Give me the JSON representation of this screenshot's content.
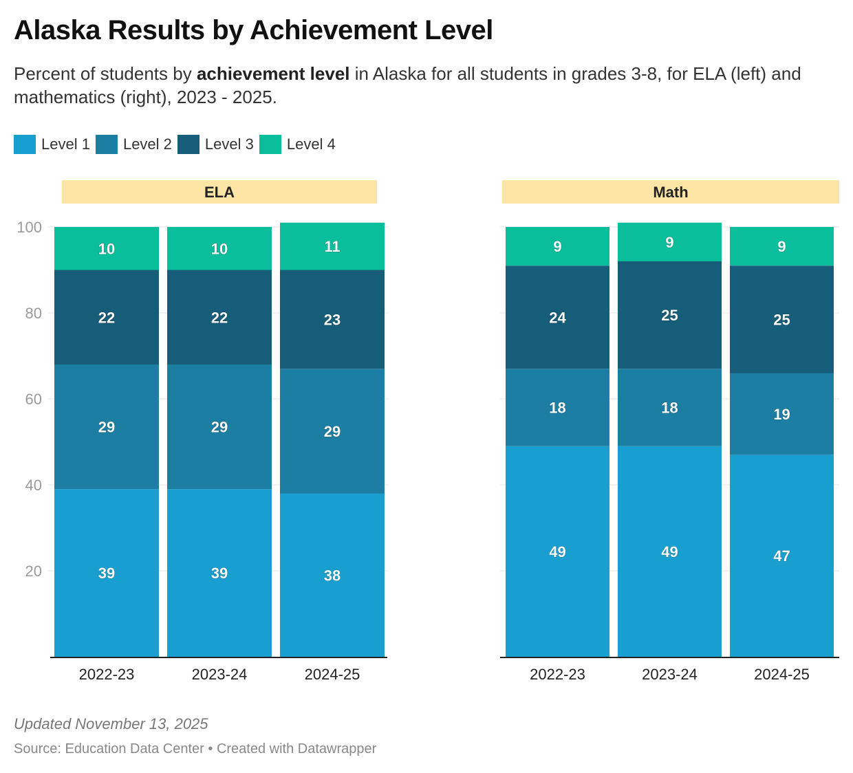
{
  "header": {
    "title": "Alaska Results by Achievement Level",
    "subtitle_pre": "Percent of students by ",
    "subtitle_bold": "achievement level",
    "subtitle_post": " in Alaska for all students in grades 3-8, for ELA (left) and mathematics (right), 2023 - 2025."
  },
  "legend": [
    {
      "label": "Level 1",
      "color": "#199fcf"
    },
    {
      "label": "Level 2",
      "color": "#1c7ea2"
    },
    {
      "label": "Level 3",
      "color": "#165d79"
    },
    {
      "label": "Level 4",
      "color": "#0abd9b"
    }
  ],
  "footer": {
    "updated": "Updated November 13, 2025",
    "source": "Source: Education Data Center • Created with Datawrapper"
  },
  "chart_data": {
    "type": "bar",
    "stacked": true,
    "ylim": [
      0,
      100
    ],
    "yticks": [
      20,
      40,
      60,
      80,
      100
    ],
    "grid": true,
    "legend_position": "top-left",
    "levels": [
      "Level 1",
      "Level 2",
      "Level 3",
      "Level 4"
    ],
    "panels": [
      {
        "name": "ELA",
        "categories": [
          "2022-23",
          "2023-24",
          "2024-25"
        ],
        "series": [
          {
            "name": "Level 1",
            "values": [
              39,
              39,
              38
            ]
          },
          {
            "name": "Level 2",
            "values": [
              29,
              29,
              29
            ]
          },
          {
            "name": "Level 3",
            "values": [
              22,
              22,
              23
            ]
          },
          {
            "name": "Level 4",
            "values": [
              10,
              10,
              11
            ]
          }
        ]
      },
      {
        "name": "Math",
        "categories": [
          "2022-23",
          "2023-24",
          "2024-25"
        ],
        "series": [
          {
            "name": "Level 1",
            "values": [
              49,
              49,
              47
            ]
          },
          {
            "name": "Level 2",
            "values": [
              18,
              18,
              19
            ]
          },
          {
            "name": "Level 3",
            "values": [
              24,
              25,
              25
            ]
          },
          {
            "name": "Level 4",
            "values": [
              9,
              9,
              9
            ]
          }
        ]
      }
    ]
  }
}
